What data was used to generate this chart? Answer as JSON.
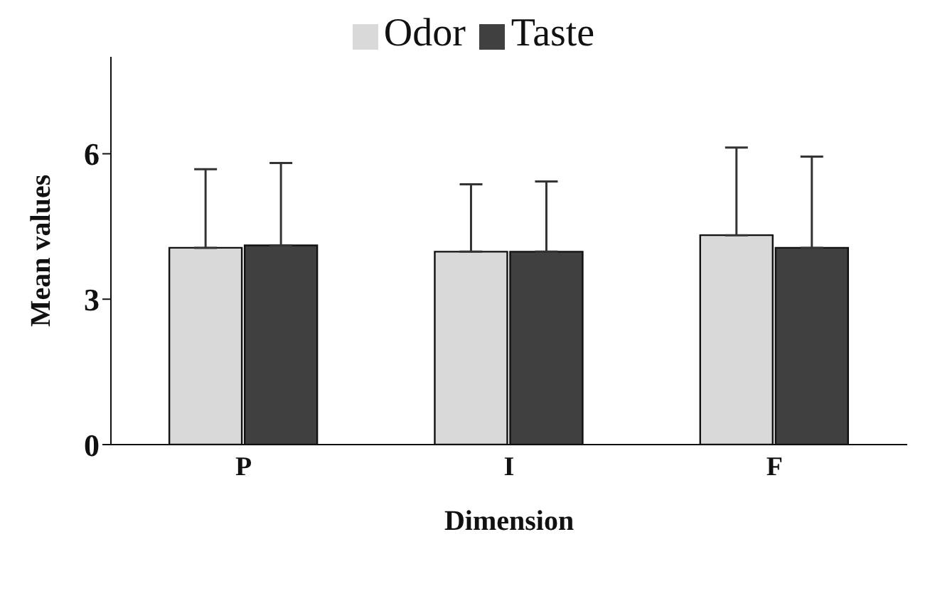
{
  "chart_data": {
    "type": "bar",
    "xlabel": "Dimension",
    "ylabel": "Mean values",
    "categories": [
      "P",
      "I",
      "F"
    ],
    "series": [
      {
        "name": "Odor",
        "color": "#d9d9d9",
        "values": [
          4.06,
          3.98,
          4.32
        ],
        "errors": [
          [
            4.06,
            5.68
          ],
          [
            3.98,
            5.37
          ],
          [
            4.32,
            6.13
          ]
        ]
      },
      {
        "name": "Taste",
        "color": "#404040",
        "values": [
          4.11,
          3.98,
          4.06
        ],
        "errors": [
          [
            4.11,
            5.81
          ],
          [
            3.98,
            5.43
          ],
          [
            4.06,
            5.94
          ]
        ]
      }
    ],
    "ylim": [
      0,
      8
    ],
    "yticks": [
      0,
      3,
      6
    ],
    "grid": false,
    "legend": "top"
  }
}
